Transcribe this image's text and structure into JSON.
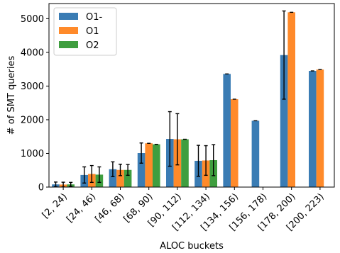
{
  "chart_data": {
    "type": "bar",
    "xlabel": "ALOC buckets",
    "ylabel": "# of SMT queries",
    "ylim": [
      0,
      5450
    ],
    "yticks": [
      0,
      1000,
      2000,
      3000,
      4000,
      5000
    ],
    "categories": [
      "[2, 24)",
      "[24, 46)",
      "[46, 68)",
      "[68, 90)",
      "[90, 112)",
      "[112, 134)",
      "[134, 156)",
      "[156, 178)",
      "[178, 200)",
      "[200, 223)"
    ],
    "legend_position": "upper-left",
    "series": [
      {
        "name": "O1-",
        "color": "#3a7cb4",
        "values": [
          80,
          360,
          530,
          1010,
          1430,
          780,
          3360,
          1970,
          3920,
          3450
        ],
        "errors": [
          70,
          240,
          220,
          300,
          810,
          460,
          0,
          0,
          1310,
          0
        ]
      },
      {
        "name": "O1",
        "color": "#ff8a2a",
        "values": [
          75,
          390,
          510,
          1300,
          1420,
          790,
          2610,
          0,
          5190,
          3490
        ],
        "errors": [
          70,
          250,
          170,
          0,
          760,
          440,
          0,
          0,
          0,
          0
        ]
      },
      {
        "name": "O2",
        "color": "#3f9e3f",
        "values": [
          80,
          370,
          510,
          1270,
          1420,
          800,
          0,
          0,
          0,
          0
        ],
        "errors": [
          60,
          230,
          160,
          0,
          0,
          460,
          0,
          0,
          0,
          0
        ]
      }
    ]
  }
}
